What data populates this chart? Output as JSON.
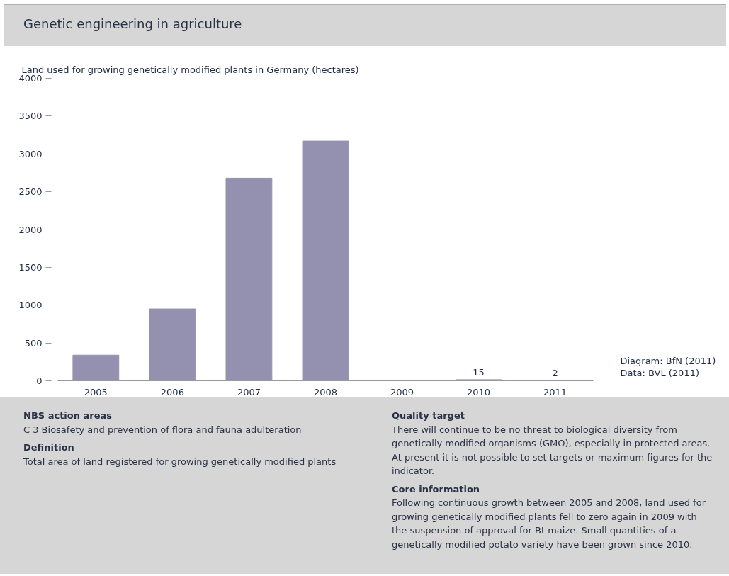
{
  "chart_data": {
    "type": "bar",
    "title": "Genetic engineering in agriculture",
    "subtitle": "Land used for growing genetically modified plants in Germany (hectares)",
    "categories": [
      "2005",
      "2006",
      "2007",
      "2008",
      "2009",
      "2010",
      "2011"
    ],
    "values": [
      340,
      950,
      2680,
      3170,
      0,
      15,
      2
    ],
    "value_labels": [
      null,
      null,
      null,
      null,
      null,
      "15",
      "2"
    ],
    "color": "#9490b0",
    "ylim": [
      0,
      4000
    ],
    "yticks": [
      0,
      500,
      1000,
      1500,
      2000,
      2500,
      3000,
      3500,
      4000
    ],
    "grid": false,
    "annotations": [
      "Diagram: BfN (2011)",
      "Data: BVL (2011)",
      "NBS action areas",
      "C 3 Biosafety and prevention of flora and fauna adulteration",
      "Definition",
      "Total area of land registered for growing genetically modified plants",
      "Quality target",
      "There will continue to be no threat to biological diversity from genetically modified organisms (GMO), especially in protected areas. At present it is not possible to set targets or maximum figures for the indicator.",
      "Core information",
      "Following continuous growth between 2005 and 2008, land used for growing genetically modified plants fell to zero again in 2009 with the suspension of approval for Bt maize. Small quantities of a genetically modified potato variety have been grown since 2010."
    ]
  }
}
